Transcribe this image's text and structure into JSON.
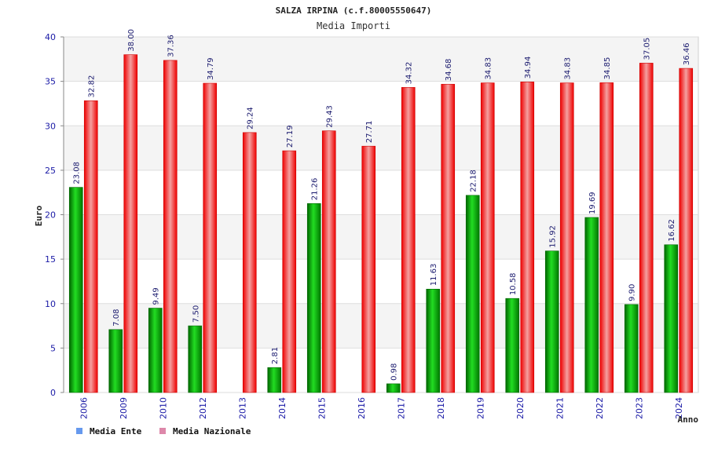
{
  "chart_data": {
    "type": "bar",
    "title": "SALZA IRPINA (c.f.80005550647)",
    "subtitle": "Media Importi",
    "xlabel": "Anno",
    "ylabel": "Euro",
    "ylim": [
      0,
      40
    ],
    "yticks": [
      0,
      5,
      10,
      15,
      20,
      25,
      30,
      35,
      40
    ],
    "grid": true,
    "legend_position": "bottom-left",
    "categories": [
      "2006",
      "2009",
      "2010",
      "2012",
      "2013",
      "2014",
      "2015",
      "2016",
      "2017",
      "2018",
      "2019",
      "2020",
      "2021",
      "2022",
      "2023",
      "2024"
    ],
    "series": [
      {
        "name": "Media Ente",
        "color": "#00aa00",
        "legend_color": "#6699ee",
        "values": [
          23.08,
          7.08,
          9.49,
          7.5,
          null,
          2.81,
          21.26,
          null,
          0.98,
          11.63,
          22.18,
          10.58,
          15.92,
          19.69,
          9.9,
          16.62
        ],
        "labels": [
          "23.08",
          "7.08",
          "9.49",
          "7.50",
          "",
          "2.81",
          "21.26",
          "",
          "0.98",
          "11.63",
          "22.18",
          "10.58",
          "15.92",
          "19.69",
          "9.90",
          "16.62"
        ]
      },
      {
        "name": "Media Nazionale",
        "color": "#ee1111",
        "legend_color": "#dd88aa",
        "values": [
          32.82,
          38.0,
          37.36,
          34.79,
          29.24,
          27.19,
          29.43,
          27.71,
          34.32,
          34.68,
          34.83,
          34.94,
          34.83,
          34.85,
          37.05,
          36.46
        ],
        "labels": [
          "32.82",
          "38.00",
          "37.36",
          "34.79",
          "29.24",
          "27.19",
          "29.43",
          "27.71",
          "34.32",
          "34.68",
          "34.83",
          "34.94",
          "34.83",
          "34.85",
          "37.05",
          "36.46"
        ]
      }
    ]
  }
}
